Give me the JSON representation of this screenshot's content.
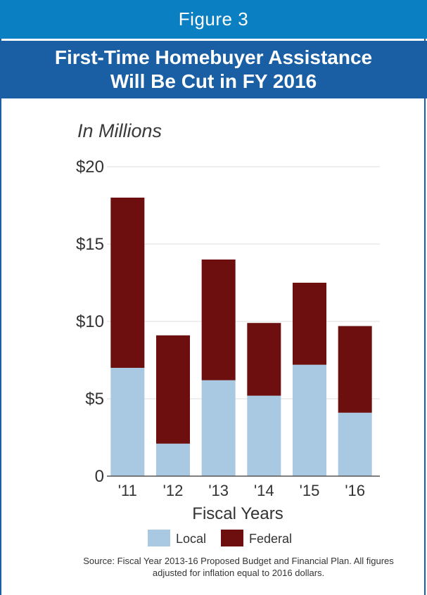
{
  "header": {
    "figure_label": "Figure 3",
    "title_line1": "First-Time Homebuyer Assistance",
    "title_line2": "Will Be Cut in FY 2016"
  },
  "chart_data": {
    "type": "bar",
    "stacked": true,
    "unit_label": "In Millions",
    "xlabel": "Fiscal Years",
    "categories": [
      "'11",
      "'12",
      "'13",
      "'14",
      "'15",
      "'16"
    ],
    "series": [
      {
        "name": "Local",
        "color": "#a9c8e2",
        "values": [
          7.0,
          2.1,
          6.2,
          5.2,
          7.2,
          4.1
        ]
      },
      {
        "name": "Federal",
        "color": "#6d0f0f",
        "values": [
          11.0,
          7.0,
          7.8,
          4.7,
          5.3,
          5.6
        ]
      }
    ],
    "ylim": [
      0,
      20
    ],
    "yticks": [
      0,
      5,
      10,
      15,
      20
    ],
    "ytick_labels": [
      "0",
      "$5",
      "$10",
      "$15",
      "$20"
    ],
    "grid": true,
    "legend_position": "bottom"
  },
  "source_note": "Source: Fiscal Year 2013-16 Proposed Budget and Financial Plan. All figures adjusted for inflation equal to 2016 dollars."
}
